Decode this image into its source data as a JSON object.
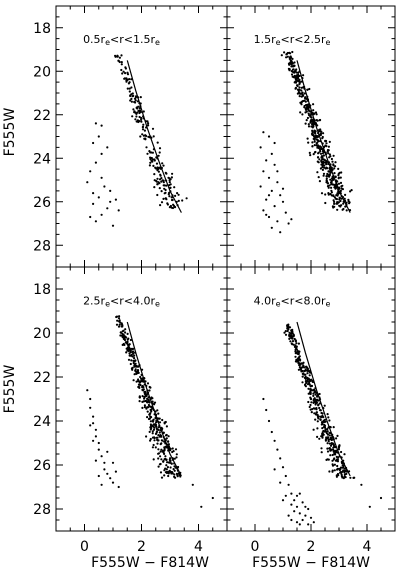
{
  "chart_data": {
    "type": "scatter",
    "xlabel": "F555W − F814W",
    "ylabel": "F555W",
    "xlim": [
      -1,
      5
    ],
    "ylim": [
      29,
      17
    ],
    "x_ticks": [
      0,
      2,
      4
    ],
    "y_ticks": [
      18,
      20,
      22,
      24,
      26,
      28
    ],
    "y_inverted": true,
    "grid": false,
    "layout": "2x2 panels with shared axes",
    "panels": [
      {
        "label_parts": [
          "0.5r",
          "e",
          "<r<1.5r",
          "e"
        ],
        "ridge_line": {
          "x": [
            1.5,
            1.8,
            2.2,
            2.6,
            3.0,
            3.4
          ],
          "y": [
            19.5,
            20.9,
            22.6,
            24.1,
            25.5,
            26.5
          ]
        },
        "main_sequence": {
          "x_start": 1.3,
          "x_end": 3.3,
          "y_start": 19.2,
          "y_end": 26.3,
          "count": 230,
          "scatter": 0.12
        },
        "blue_stars": [
          [
            0.4,
            22.4
          ],
          [
            0.6,
            22.5
          ],
          [
            0.5,
            23.0
          ],
          [
            0.3,
            23.3
          ],
          [
            0.8,
            23.5
          ],
          [
            0.6,
            23.8
          ],
          [
            0.4,
            24.2
          ],
          [
            0.2,
            24.6
          ],
          [
            0.1,
            25.1
          ],
          [
            0.7,
            25.3
          ],
          [
            0.9,
            25.5
          ],
          [
            0.5,
            25.8
          ],
          [
            1.1,
            25.9
          ],
          [
            0.3,
            26.1
          ],
          [
            0.8,
            26.3
          ],
          [
            0.6,
            26.6
          ],
          [
            1.2,
            26.4
          ],
          [
            0.4,
            26.9
          ],
          [
            1.0,
            27.1
          ],
          [
            0.2,
            26.7
          ],
          [
            0.9,
            26.0
          ],
          [
            0.6,
            24.9
          ],
          [
            0.3,
            25.6
          ]
        ]
      },
      {
        "label_parts": [
          "1.5r",
          "e",
          "<r<2.5r",
          "e"
        ],
        "ridge_line": {
          "x": [
            1.5,
            1.8,
            2.2,
            2.6,
            3.0,
            3.4
          ],
          "y": [
            19.5,
            20.9,
            22.6,
            24.1,
            25.5,
            26.5
          ]
        },
        "main_sequence": {
          "x_start": 1.3,
          "x_end": 3.3,
          "y_start": 19.1,
          "y_end": 26.4,
          "count": 520,
          "scatter": 0.13
        },
        "blue_stars": [
          [
            0.3,
            22.8
          ],
          [
            0.5,
            23.0
          ],
          [
            0.2,
            23.5
          ],
          [
            0.6,
            23.8
          ],
          [
            0.4,
            24.1
          ],
          [
            0.7,
            24.3
          ],
          [
            0.3,
            24.6
          ],
          [
            0.5,
            24.9
          ],
          [
            0.8,
            25.1
          ],
          [
            0.2,
            25.3
          ],
          [
            0.6,
            25.5
          ],
          [
            0.9,
            25.7
          ],
          [
            0.4,
            25.9
          ],
          [
            1.0,
            26.0
          ],
          [
            0.7,
            26.2
          ],
          [
            0.3,
            26.4
          ],
          [
            1.1,
            26.5
          ],
          [
            0.5,
            26.7
          ],
          [
            0.8,
            26.9
          ],
          [
            1.2,
            27.0
          ],
          [
            0.6,
            27.2
          ],
          [
            0.9,
            27.4
          ],
          [
            0.4,
            26.6
          ],
          [
            1.0,
            25.4
          ],
          [
            0.7,
            23.3
          ],
          [
            0.5,
            25.7
          ],
          [
            0.8,
            24.6
          ],
          [
            1.3,
            26.8
          ]
        ]
      },
      {
        "label_parts": [
          "2.5r",
          "e",
          "<r<4.0r",
          "e"
        ],
        "ridge_line": {
          "x": [
            1.5,
            1.8,
            2.2,
            2.6,
            3.0,
            3.4
          ],
          "y": [
            19.5,
            20.9,
            22.6,
            24.1,
            25.5,
            26.5
          ]
        },
        "main_sequence": {
          "x_start": 1.3,
          "x_end": 3.3,
          "y_start": 19.2,
          "y_end": 26.6,
          "count": 430,
          "scatter": 0.12
        },
        "blue_stars": [
          [
            0.1,
            22.6
          ],
          [
            0.2,
            23.0
          ],
          [
            0.2,
            23.4
          ],
          [
            0.3,
            23.8
          ],
          [
            0.3,
            24.1
          ],
          [
            0.4,
            24.4
          ],
          [
            0.4,
            24.7
          ],
          [
            0.5,
            25.0
          ],
          [
            0.5,
            25.3
          ],
          [
            0.6,
            25.6
          ],
          [
            0.7,
            25.9
          ],
          [
            0.7,
            26.2
          ],
          [
            0.8,
            26.4
          ],
          [
            0.9,
            26.6
          ],
          [
            1.0,
            26.8
          ],
          [
            0.6,
            26.9
          ],
          [
            1.1,
            26.3
          ],
          [
            0.4,
            25.8
          ],
          [
            0.8,
            25.4
          ],
          [
            0.3,
            24.9
          ],
          [
            1.0,
            25.9
          ],
          [
            0.5,
            26.5
          ],
          [
            1.2,
            27.0
          ],
          [
            0.2,
            24.2
          ]
        ]
      },
      {
        "label_parts": [
          "4.0r",
          "e",
          "<r<8.0r",
          "e"
        ],
        "ridge_line": {
          "x": [
            1.5,
            1.8,
            2.2,
            2.6,
            3.0,
            3.4
          ],
          "y": [
            19.5,
            20.9,
            22.6,
            24.1,
            25.5,
            26.5
          ]
        },
        "main_sequence": {
          "x_start": 1.3,
          "x_end": 3.3,
          "y_start": 19.6,
          "y_end": 26.6,
          "count": 420,
          "scatter": 0.11
        },
        "blue_stars": [
          [
            0.3,
            23.0
          ],
          [
            0.4,
            23.5
          ],
          [
            0.5,
            24.0
          ],
          [
            0.6,
            24.5
          ],
          [
            0.7,
            24.9
          ],
          [
            0.8,
            25.3
          ],
          [
            0.9,
            25.7
          ],
          [
            1.0,
            26.1
          ],
          [
            1.1,
            26.5
          ],
          [
            1.2,
            26.9
          ],
          [
            1.3,
            27.3
          ],
          [
            1.4,
            27.6
          ],
          [
            1.5,
            27.9
          ],
          [
            1.6,
            28.2
          ],
          [
            1.7,
            28.5
          ],
          [
            1.8,
            28.3
          ],
          [
            1.5,
            28.6
          ],
          [
            1.9,
            28.0
          ],
          [
            1.3,
            27.8
          ],
          [
            1.7,
            27.7
          ],
          [
            1.1,
            27.4
          ],
          [
            2.0,
            28.4
          ],
          [
            1.6,
            28.7
          ],
          [
            1.4,
            28.1
          ],
          [
            1.8,
            27.9
          ],
          [
            1.2,
            28.3
          ],
          [
            0.9,
            26.8
          ],
          [
            1.0,
            27.6
          ],
          [
            1.6,
            27.3
          ],
          [
            2.1,
            28.6
          ],
          [
            1.3,
            28.5
          ],
          [
            0.7,
            26.2
          ],
          [
            1.9,
            28.7
          ],
          [
            1.5,
            27.4
          ]
        ]
      }
    ],
    "outliers": [
      [
        3.8,
        26.9
      ],
      [
        4.1,
        27.9
      ],
      [
        4.5,
        27.5
      ]
    ]
  }
}
